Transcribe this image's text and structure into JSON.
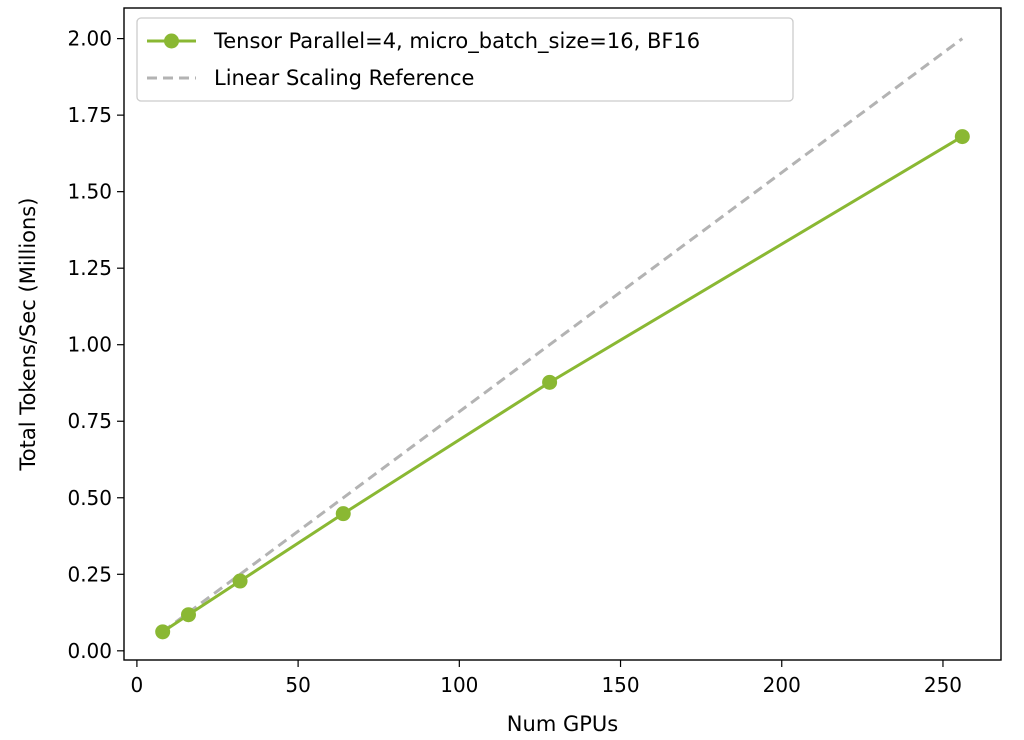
{
  "chart_data": {
    "type": "line",
    "title": "",
    "xlabel": "Num GPUs",
    "ylabel": "Total Tokens/Sec (Millions)",
    "xlim": [
      -4,
      268
    ],
    "ylim": [
      -0.03,
      2.1
    ],
    "x_ticks": [
      0,
      50,
      100,
      150,
      200,
      250
    ],
    "x_tick_labels": [
      "0",
      "50",
      "100",
      "150",
      "200",
      "250"
    ],
    "y_ticks": [
      0.0,
      0.25,
      0.5,
      0.75,
      1.0,
      1.25,
      1.5,
      1.75,
      2.0
    ],
    "y_tick_labels": [
      "0.00",
      "0.25",
      "0.50",
      "0.75",
      "1.00",
      "1.25",
      "1.50",
      "1.75",
      "2.00"
    ],
    "grid": false,
    "legend_position": "top-left",
    "series": [
      {
        "name": "Tensor Parallel=4, micro_batch_size=16, BF16",
        "color": "#8ab833",
        "style": "solid",
        "marker": "circle",
        "x": [
          8,
          16,
          32,
          64,
          128,
          256
        ],
        "y": [
          0.062,
          0.118,
          0.228,
          0.448,
          0.877,
          1.68
        ]
      },
      {
        "name": "Linear Scaling Reference",
        "color": "#b3b3b3",
        "style": "dashed",
        "marker": "none",
        "x": [
          8,
          16,
          32,
          64,
          128,
          256
        ],
        "y": [
          0.0625,
          0.125,
          0.25,
          0.5,
          1.0,
          2.0
        ]
      }
    ]
  }
}
